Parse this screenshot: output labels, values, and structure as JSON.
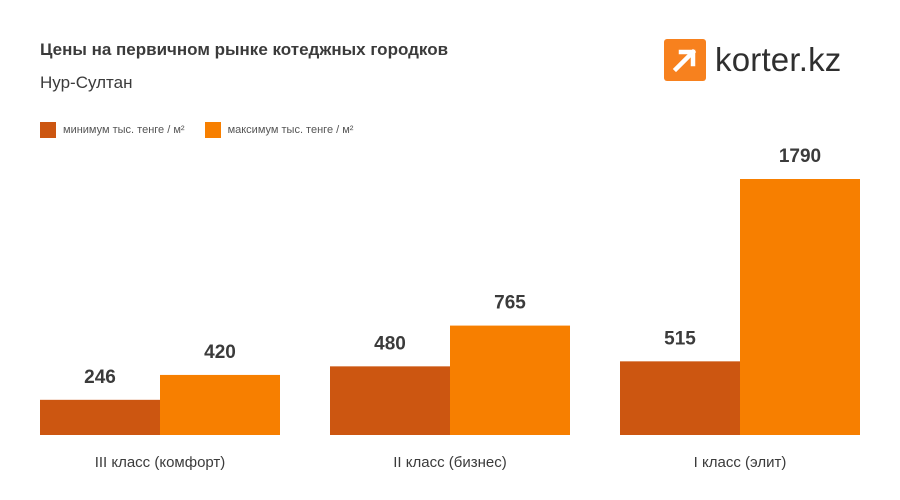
{
  "title": "Цены на первичном рынке котеджных городков",
  "subtitle": "Нур-Султан",
  "logo": {
    "text": "korter.kz",
    "icon": "arrow-up-right-icon",
    "color": "#F7811E"
  },
  "colors": {
    "min": "#CC5611",
    "max": "#F77F00"
  },
  "chart_data": {
    "type": "bar",
    "categories": [
      "III класс (комфорт)",
      "II класс (бизнес)",
      "I класс (элит)"
    ],
    "series": [
      {
        "name": "минимум тыс. тенге / м²",
        "values": [
          246,
          480,
          515
        ]
      },
      {
        "name": "максимум тыс. тенге / м²",
        "values": [
          420,
          765,
          1790
        ]
      }
    ],
    "legend_position": "top-left",
    "grid": false
  }
}
